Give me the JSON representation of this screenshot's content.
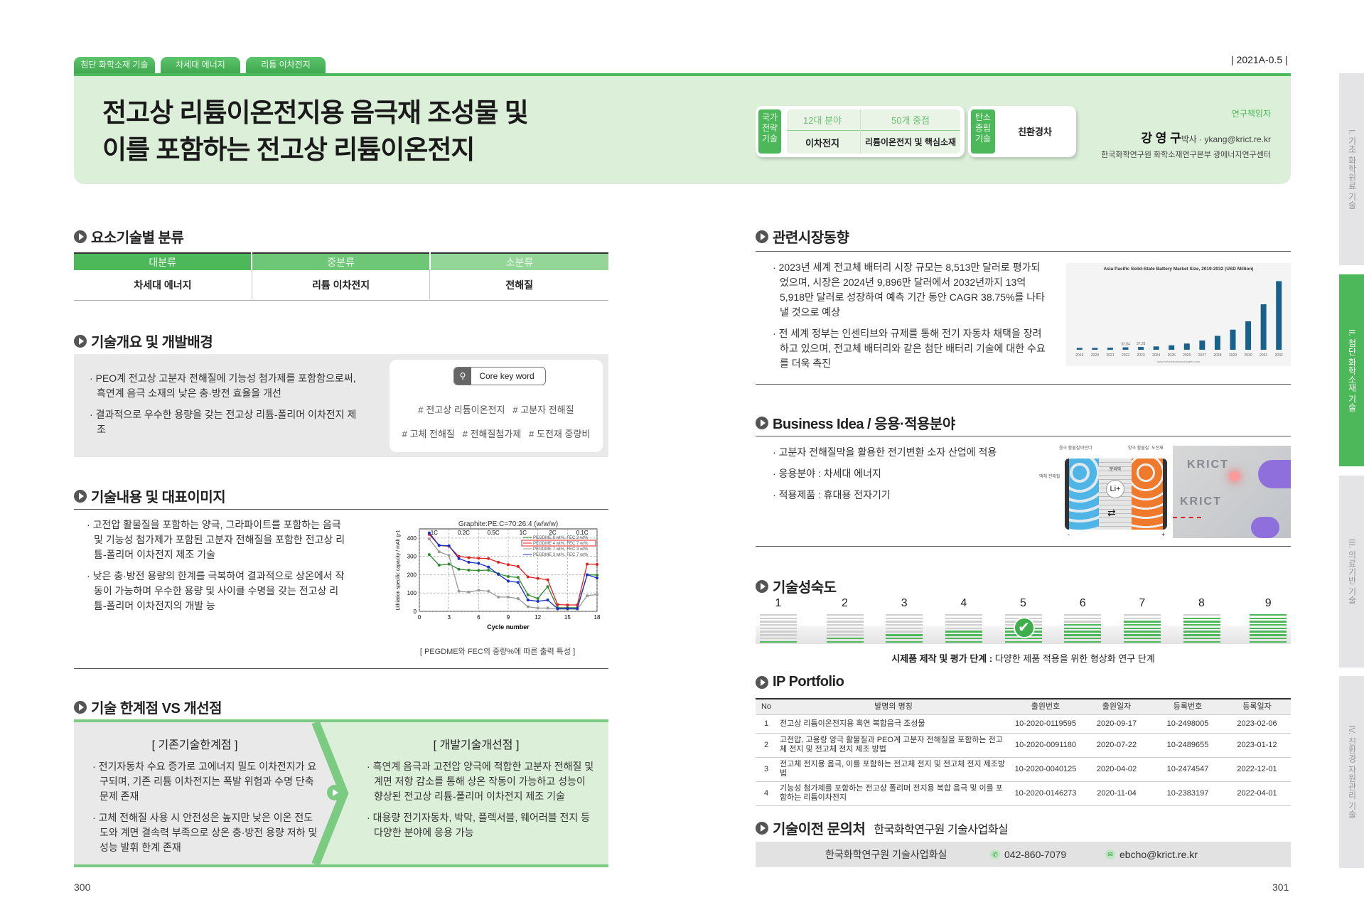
{
  "breadcrumb_tabs": [
    "첨단 화학소재 기술",
    "차세대 에너지",
    "리튬 이차전지"
  ],
  "page_code": "| 2021A-0.5 |",
  "title_lines": [
    "전고상 리튬이온전지용 음극재 조성물 및",
    "이를 포함하는 전고상 리튬이온전지"
  ],
  "strategy": {
    "label": "국가 전략 기술",
    "col1_head": "12대 분야",
    "col1_val": "이차전지",
    "col2_head": "50개 중점",
    "col2_val": "리튬이온전지 및 핵심소재",
    "carbon_label": "탄소 중립 기술",
    "carbon_val": "친환경차"
  },
  "researcher": {
    "role": "연구책임자",
    "name": "강 영 구",
    "title_email": "박사 · ykang@krict.re.kr",
    "affiliation": "한국화학연구원 화학소재연구본부 광에너지연구센터"
  },
  "side_tabs": [
    {
      "label": "I. 기초 화학원료 기술",
      "active": false
    },
    {
      "label": "II. 첨단 화학소재 기술",
      "active": true
    },
    {
      "label": "III. 의료기반 기술",
      "active": false
    },
    {
      "label": "IV. 친환경 자원관리 기술",
      "active": false
    }
  ],
  "classification": {
    "heading": "요소기술별 분류",
    "headers": [
      "대분류",
      "중분류",
      "소분류"
    ],
    "values": [
      "차세대 에너지",
      "리튬 이차전지",
      "전해질"
    ]
  },
  "overview": {
    "heading": "기술개요 및 개발배경",
    "bullets": [
      "PEO계 전고상 고분자 전해질에 기능성 첨가제를 포함함으로써, 흑연계 음극 소재의 낮은 충·방전 효율을 개선",
      "결과적으로 우수한 용량을 갖는 전고상 리튬-폴리머 이차전지 제조"
    ],
    "keyword_label": "Core key word",
    "keywords_line1": "# 전고상 리튬이온전지   # 고분자 전해질",
    "keywords_line2": "# 고체 전해질   # 전해질첨가제   # 도전재 중량비"
  },
  "content": {
    "heading": "기술내용 및 대표이미지",
    "bullets": [
      "고전압 활물질을 포함하는 양극, 그라파이트를 포함하는 음극 및 기능성 첨가제가 포함된 고분자 전해질을 포함한 전고상 리튬-폴리머 이차전지 제조 기술",
      "낮은 충·방전 용량의 한계를 극복하여 결과적으로 상온에서 작동이 가능하며 우수한 용량 및 사이클 수명을 갖는 전고상 리튬-폴리머 이차전지의 개발 능"
    ],
    "figure_caption": "[ PEGDME와 FEC의 중량%에 따른 출력 특성 ]"
  },
  "limits": {
    "heading": "기술 한계점 VS 개선점",
    "left_title": "[ 기존기술한계점 ]",
    "left_bullets": [
      "전기자동차 수요 증가로 고에너지 밀도 이차전지가 요구되며, 기존 리튬 이차전지는 폭발 위험과 수명 단축 문제 존재",
      "고체 전해질 사용 시 안전성은 높지만 낮은 이온 전도도와 계면 결속력 부족으로 상온 충·방전 용량 저하 및 성능 발휘 한계 존재"
    ],
    "right_title": "[ 개발기술개선점 ]",
    "right_bullets": [
      "흑연계 음극과 고전압 양극에 적합한 고분자 전해질 및 계면 저항 감소를 통해 상온 작동이 가능하고 성능이 향상된 전고상 리튬-폴리머 이차전지 제조 기술",
      "대용량 전기자동차, 박막, 플렉서블, 웨어러블 전지 등 다양한 분야에 응용 가능"
    ]
  },
  "market": {
    "heading": "관련시장동향",
    "bullets": [
      "2023년 세계 전고체 배터리 시장 규모는 8,513만 달러로 평가되었으며, 시장은 2024년 9,896만 달러에서 2032년까지 13억 5,918만 달러로 성장하여 예측 기간 동안 CAGR 38.75%를 나타낼 것으로 예상",
      "전 세계 정부는 인센티브와 규제를 통해 전기 자동차 채택을 장려하고 있으며, 전고체 배터리와 같은 첨단 배터리 기술에 대한 수요를 더욱 촉진"
    ],
    "chart_source": "www.fortunebusinessinsights.com"
  },
  "business": {
    "heading": "Business Idea / 응용·적용분야",
    "bullets": [
      "고분자 전해질막을 활용한 전기변환 소자 산업에 적용",
      "응용분야 : 차세대 에너지",
      "적용제품 : 휴대용 전자기기"
    ],
    "diagram_labels": {
      "anode": "음극 활물질",
      "binder": "바인더",
      "cathode": "양극 활물질",
      "conductor": "도전재",
      "electrolyte": "액체 전해질",
      "separator": "분리막",
      "ion": "Li+",
      "minus": "-",
      "plus": "+"
    },
    "photo_text": "KRICT"
  },
  "maturity": {
    "heading": "기술성숙도",
    "levels": [
      "1",
      "2",
      "3",
      "4",
      "5",
      "6",
      "7",
      "8",
      "9"
    ],
    "current_level": 5,
    "caption_bold": "시제품 제작 및 평가 단계 :",
    "caption": " 다양한 제품 적용을 위한 형상화 연구 단계"
  },
  "ip": {
    "heading": "IP Portfolio",
    "headers": [
      "No",
      "발명의 명칭",
      "출원번호",
      "출원일자",
      "등록번호",
      "등록일자"
    ],
    "rows": [
      [
        "1",
        "전고상 리튬이온전지용 흑연 복합음극 조성물",
        "10-2020-0119595",
        "2020-09-17",
        "10-2498005",
        "2023-02-06"
      ],
      [
        "2",
        "고전압, 고용량 양극 활물질과 PEO계 고분자 전해질을 포함하는 전고체 전지 및 전고체 전지 제조 방법",
        "10-2020-0091180",
        "2020-07-22",
        "10-2489655",
        "2023-01-12"
      ],
      [
        "3",
        "전고체 전지용 음극, 이를 포함하는 전고체 전지 및 전고체 전지 제조방법",
        "10-2020-0040125",
        "2020-04-02",
        "10-2474547",
        "2022-12-01"
      ],
      [
        "4",
        "기능성 첨가제를 포함하는 전고상 폴리머 전지용 복합 음극 및 이를 포함하는 리튬이차전지",
        "10-2020-0146273",
        "2020-11-04",
        "10-2383197",
        "2022-04-01"
      ]
    ]
  },
  "contact": {
    "heading": "기술이전 문의처",
    "subheading": "한국화학연구원 기술사업화실",
    "org": "한국화학연구원 기술사업화실",
    "phone": "042-860-7079",
    "email": "ebcho@krict.re.kr"
  },
  "page_numbers": {
    "left": "300",
    "right": "301"
  },
  "colors": {
    "accent": "#4cb85a",
    "header_bg": "#dcf0d9",
    "market_bar": "#17618a"
  },
  "chart_data": [
    {
      "type": "line",
      "title": "Graphite:PE:C=70:26:4  (w/w/w)",
      "xlabel": "Cycle number",
      "ylabel": "Lithiation specific capacity / mAh g-1",
      "xlim": [
        0,
        18
      ],
      "ylim": [
        0,
        450
      ],
      "xticks": [
        "0",
        "3",
        "6",
        "9",
        "12",
        "15",
        "18"
      ],
      "yticks": [
        "0",
        "100",
        "200",
        "300",
        "400"
      ],
      "rate_labels": [
        "1C",
        "0.2C",
        "0.5C",
        "1C",
        "2C",
        "0.1C"
      ],
      "grid": true,
      "legend": "top-right",
      "x": [
        1,
        2,
        3,
        4,
        5,
        6,
        7,
        8,
        9,
        10,
        11,
        12,
        13,
        14,
        15,
        16,
        17,
        18
      ],
      "series": [
        {
          "name": "PEGDME 8 wt%, FEC 3 wt%",
          "color": "#2e8b2e",
          "values": [
            310,
            252,
            258,
            230,
            225,
            223,
            225,
            205,
            190,
            185,
            90,
            70,
            135,
            20,
            20,
            20,
            200,
            198
          ]
        },
        {
          "name": "PEGDME 4 wt%, FEC 7 wt%",
          "color": "#e02020",
          "values": [
            420,
            360,
            355,
            300,
            293,
            290,
            288,
            268,
            255,
            245,
            188,
            180,
            172,
            37,
            35,
            35,
            258,
            256
          ]
        },
        {
          "name": "PEGDME 7 wt%, FEC 3 wt%",
          "color": "#999999",
          "values": [
            395,
            325,
            305,
            110,
            105,
            115,
            110,
            78,
            78,
            70,
            25,
            18,
            18,
            12,
            12,
            12,
            85,
            92
          ]
        },
        {
          "name": "PEGDME 3 wt%, FEC 7 wt%",
          "color": "#1a2fc8",
          "values": [
            428,
            360,
            358,
            288,
            268,
            262,
            242,
            202,
            165,
            158,
            62,
            55,
            62,
            15,
            15,
            15,
            200,
            182
          ]
        }
      ]
    },
    {
      "type": "bar",
      "title": "Asia Pacific Solid-State Battery Market Size, 2019-2032 (USD Million)",
      "categories": [
        "2019",
        "2020",
        "2021",
        "2022",
        "2023",
        "2024",
        "2025",
        "2026",
        "2027",
        "2028",
        "2029",
        "2030",
        "2031",
        "2032"
      ],
      "values": [
        25,
        25,
        28,
        32.84,
        37.28,
        45,
        60,
        84,
        125,
        188,
        272,
        385,
        615,
        928
      ],
      "data_labels": {
        "2022": "32.84",
        "2023": "37.28"
      }
    }
  ]
}
